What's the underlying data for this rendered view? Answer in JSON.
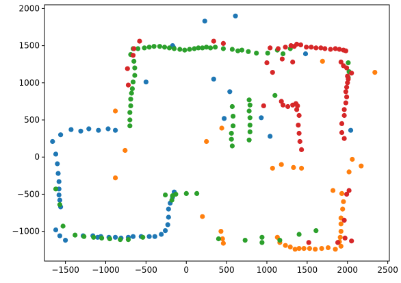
{
  "chart_data": {
    "type": "scatter",
    "title": "",
    "xlabel": "",
    "ylabel": "",
    "xlim": [
      -1760,
      2520
    ],
    "ylim": [
      -1400,
      2050
    ],
    "xticks": [
      -1500,
      -1000,
      -500,
      0,
      500,
      1000,
      1500,
      2000,
      2500
    ],
    "yticks": [
      -1000,
      -500,
      0,
      500,
      1000,
      1500,
      2000
    ],
    "grid": false,
    "series": [
      {
        "color": "#1f77b4",
        "points": [
          [
            -1660,
            210
          ],
          [
            -1620,
            40
          ],
          [
            -1600,
            -90
          ],
          [
            -1590,
            -220
          ],
          [
            -1580,
            -330
          ],
          [
            -1580,
            -430
          ],
          [
            -1580,
            -510
          ],
          [
            -1570,
            -580
          ],
          [
            -1560,
            -670
          ],
          [
            -1620,
            -980
          ],
          [
            -1570,
            -1060
          ],
          [
            -1500,
            -1120
          ],
          [
            -1560,
            300
          ],
          [
            -1430,
            370
          ],
          [
            -1310,
            350
          ],
          [
            -1210,
            380
          ],
          [
            -1090,
            360
          ],
          [
            -970,
            380
          ],
          [
            -880,
            360
          ],
          [
            -1280,
            -1060
          ],
          [
            -1160,
            -1060
          ],
          [
            -1060,
            -1070
          ],
          [
            -960,
            -1080
          ],
          [
            -880,
            -1080
          ],
          [
            -810,
            -1090
          ],
          [
            -720,
            -1080
          ],
          [
            -660,
            -1070
          ],
          [
            -560,
            -1070
          ],
          [
            -460,
            -1070
          ],
          [
            -390,
            -1070
          ],
          [
            -310,
            -1040
          ],
          [
            -260,
            -990
          ],
          [
            -230,
            -910
          ],
          [
            -220,
            -810
          ],
          [
            -220,
            -700
          ],
          [
            -200,
            -620
          ],
          [
            -170,
            -540
          ],
          [
            -150,
            -470
          ],
          [
            -500,
            1010
          ],
          [
            -170,
            1500
          ],
          [
            -160,
            1480
          ],
          [
            230,
            1830
          ],
          [
            610,
            1900
          ],
          [
            340,
            1050
          ],
          [
            540,
            880
          ],
          [
            470,
            520
          ],
          [
            930,
            530
          ],
          [
            1040,
            280
          ],
          [
            1480,
            1390
          ],
          [
            2040,
            360
          ],
          [
            -1100,
            -1080
          ]
        ]
      },
      {
        "color": "#ff7f0e",
        "points": [
          [
            -880,
            620
          ],
          [
            -880,
            -280
          ],
          [
            -760,
            90
          ],
          [
            250,
            210
          ],
          [
            440,
            390
          ],
          [
            200,
            -800
          ],
          [
            430,
            -1000
          ],
          [
            450,
            -1100
          ],
          [
            1070,
            -150
          ],
          [
            1180,
            -100
          ],
          [
            1330,
            -140
          ],
          [
            1430,
            -150
          ],
          [
            1690,
            1290
          ],
          [
            2340,
            1140
          ],
          [
            2060,
            -30
          ],
          [
            2170,
            -120
          ],
          [
            2020,
            -200
          ],
          [
            1820,
            -450
          ],
          [
            1930,
            -490
          ],
          [
            1950,
            -600
          ],
          [
            1940,
            -700
          ],
          [
            1920,
            -820
          ],
          [
            1920,
            -900
          ],
          [
            1920,
            -1000
          ],
          [
            1910,
            -1080
          ],
          [
            1900,
            -1140
          ],
          [
            1920,
            -1200
          ],
          [
            1850,
            -1240
          ],
          [
            1760,
            -1220
          ],
          [
            1680,
            -1230
          ],
          [
            1600,
            -1240
          ],
          [
            1530,
            -1230
          ],
          [
            1460,
            -1230
          ],
          [
            1400,
            -1230
          ],
          [
            1350,
            -1240
          ],
          [
            1290,
            -1210
          ],
          [
            1230,
            -1190
          ],
          [
            1160,
            -1150
          ],
          [
            1130,
            -1080
          ],
          [
            460,
            -1160
          ]
        ]
      },
      {
        "color": "#2ca02c",
        "points": [
          [
            -660,
            1460
          ],
          [
            -690,
            1380
          ],
          [
            -650,
            1290
          ],
          [
            -640,
            1200
          ],
          [
            -640,
            1100
          ],
          [
            -660,
            1010
          ],
          [
            -670,
            920
          ],
          [
            -680,
            860
          ],
          [
            -690,
            780
          ],
          [
            -690,
            690
          ],
          [
            -700,
            600
          ],
          [
            -700,
            500
          ],
          [
            -700,
            420
          ],
          [
            -600,
            1460
          ],
          [
            -520,
            1470
          ],
          [
            -460,
            1480
          ],
          [
            -400,
            1490
          ],
          [
            -330,
            1490
          ],
          [
            -270,
            1480
          ],
          [
            -210,
            1470
          ],
          [
            -150,
            1460
          ],
          [
            -80,
            1450
          ],
          [
            -20,
            1440
          ],
          [
            40,
            1450
          ],
          [
            100,
            1460
          ],
          [
            150,
            1470
          ],
          [
            200,
            1470
          ],
          [
            250,
            1480
          ],
          [
            300,
            1470
          ],
          [
            360,
            1480
          ],
          [
            460,
            1460
          ],
          [
            570,
            1450
          ],
          [
            640,
            1430
          ],
          [
            690,
            1440
          ],
          [
            770,
            1420
          ],
          [
            870,
            1400
          ],
          [
            1010,
            1400
          ],
          [
            1130,
            1440
          ],
          [
            1200,
            1390
          ],
          [
            1290,
            1460
          ],
          [
            780,
            770
          ],
          [
            790,
            700
          ],
          [
            780,
            620
          ],
          [
            790,
            530
          ],
          [
            790,
            430
          ],
          [
            790,
            340
          ],
          [
            780,
            230
          ],
          [
            570,
            680
          ],
          [
            580,
            550
          ],
          [
            580,
            420
          ],
          [
            560,
            320
          ],
          [
            560,
            240
          ],
          [
            570,
            150
          ],
          [
            1100,
            830
          ],
          [
            2010,
            1270
          ],
          [
            2020,
            1150
          ],
          [
            2010,
            1070
          ],
          [
            -1620,
            -430
          ],
          [
            -1570,
            -640
          ],
          [
            -1530,
            -930
          ],
          [
            -1380,
            -1050
          ],
          [
            -1270,
            -1070
          ],
          [
            -1150,
            -1080
          ],
          [
            -1050,
            -1090
          ],
          [
            -950,
            -1100
          ],
          [
            -820,
            -1110
          ],
          [
            -720,
            -1110
          ],
          [
            -540,
            -1080
          ],
          [
            -260,
            -510
          ],
          [
            -180,
            -580
          ],
          [
            -170,
            -520
          ],
          [
            -130,
            -500
          ],
          [
            0,
            -490
          ],
          [
            130,
            -490
          ],
          [
            400,
            -1100
          ],
          [
            730,
            -1120
          ],
          [
            940,
            -1080
          ],
          [
            940,
            -1150
          ],
          [
            1160,
            -1120
          ],
          [
            1400,
            -1040
          ],
          [
            1610,
            -990
          ]
        ]
      },
      {
        "color": "#d62728",
        "points": [
          [
            -580,
            1560
          ],
          [
            -650,
            1460
          ],
          [
            -660,
            1370
          ],
          [
            -730,
            1190
          ],
          [
            -720,
            970
          ],
          [
            340,
            1560
          ],
          [
            460,
            1530
          ],
          [
            1040,
            1470
          ],
          [
            1140,
            1460
          ],
          [
            1230,
            1480
          ],
          [
            1300,
            1500
          ],
          [
            1340,
            1490
          ],
          [
            1370,
            1520
          ],
          [
            1420,
            1510
          ],
          [
            1490,
            1480
          ],
          [
            1550,
            1480
          ],
          [
            1610,
            1470
          ],
          [
            1670,
            1470
          ],
          [
            1720,
            1460
          ],
          [
            1790,
            1450
          ],
          [
            1850,
            1460
          ],
          [
            1900,
            1450
          ],
          [
            1950,
            1440
          ],
          [
            1980,
            1430
          ],
          [
            1190,
            1320
          ],
          [
            1320,
            1280
          ],
          [
            1000,
            1270
          ],
          [
            1070,
            1140
          ],
          [
            1180,
            750
          ],
          [
            1200,
            700
          ],
          [
            1260,
            680
          ],
          [
            1320,
            700
          ],
          [
            1360,
            720
          ],
          [
            1380,
            690
          ],
          [
            1370,
            640
          ],
          [
            1400,
            560
          ],
          [
            1390,
            430
          ],
          [
            1400,
            320
          ],
          [
            1410,
            210
          ],
          [
            1430,
            100
          ],
          [
            960,
            690
          ],
          [
            1920,
            1280
          ],
          [
            1950,
            1230
          ],
          [
            1990,
            1200
          ],
          [
            2000,
            1090
          ],
          [
            2000,
            1000
          ],
          [
            1990,
            940
          ],
          [
            1980,
            880
          ],
          [
            1990,
            810
          ],
          [
            1980,
            730
          ],
          [
            1960,
            640
          ],
          [
            1960,
            560
          ],
          [
            1930,
            450
          ],
          [
            1930,
            330
          ],
          [
            1960,
            250
          ],
          [
            2050,
            1130
          ],
          [
            2020,
            -450
          ],
          [
            1990,
            -500
          ],
          [
            1960,
            -850
          ],
          [
            1970,
            -1090
          ],
          [
            2050,
            -1130
          ],
          [
            1880,
            -1150
          ],
          [
            1520,
            -1150
          ],
          [
            2010,
            1050
          ]
        ]
      }
    ]
  }
}
